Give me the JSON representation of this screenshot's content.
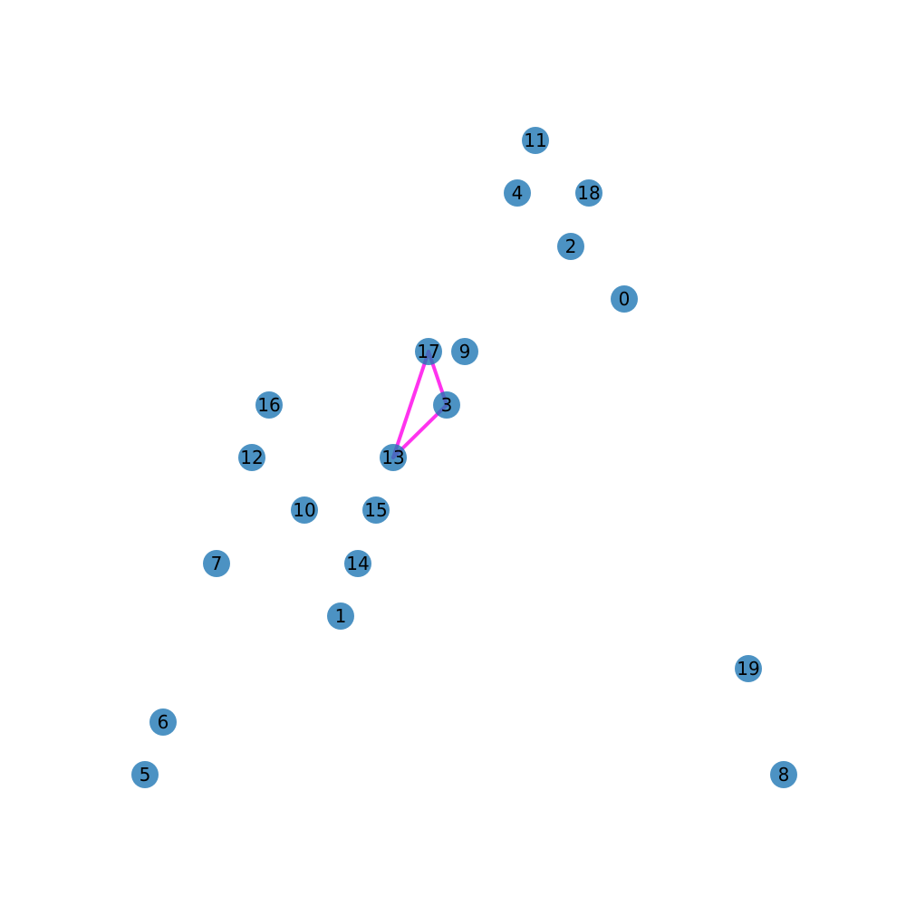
{
  "graph": {
    "node_color": "#1f77b4",
    "node_opacity": 0.8,
    "highlight_edge_color": "#ff33ee",
    "nodes": [
      {
        "id": "0"
      },
      {
        "id": "1"
      },
      {
        "id": "2"
      },
      {
        "id": "3"
      },
      {
        "id": "4"
      },
      {
        "id": "5"
      },
      {
        "id": "6"
      },
      {
        "id": "7"
      },
      {
        "id": "8"
      },
      {
        "id": "9"
      },
      {
        "id": "10"
      },
      {
        "id": "11"
      },
      {
        "id": "12"
      },
      {
        "id": "13"
      },
      {
        "id": "14"
      },
      {
        "id": "15"
      },
      {
        "id": "16"
      },
      {
        "id": "17"
      },
      {
        "id": "18"
      },
      {
        "id": "19"
      }
    ],
    "edges": [
      {
        "source": "17",
        "target": "3"
      },
      {
        "source": "17",
        "target": "13"
      },
      {
        "source": "3",
        "target": "13"
      }
    ]
  }
}
